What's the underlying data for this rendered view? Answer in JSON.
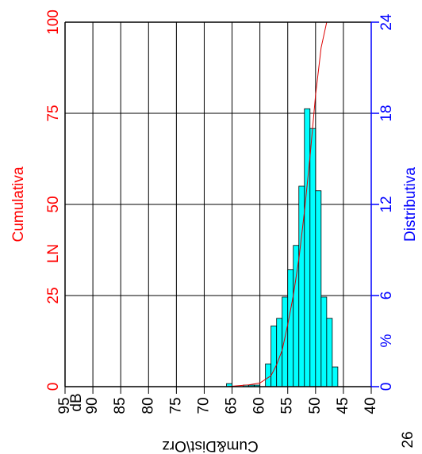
{
  "chart_data": {
    "type": "histogram",
    "xlim": [
      95,
      40
    ],
    "xticks": [
      95,
      90,
      85,
      80,
      75,
      70,
      65,
      60,
      55,
      50,
      45,
      40
    ],
    "x_unit_label": "dB",
    "ylim": [
      0,
      100
    ],
    "yticks": [
      0,
      25,
      50,
      75,
      100
    ],
    "ylabel": "Cumulativa",
    "ylabel_prefix": "LN",
    "y2lim": [
      0,
      24
    ],
    "y2ticks": [
      0,
      6,
      12,
      18,
      24
    ],
    "y2label": "Distributiva",
    "y2_unit_label": "%",
    "grid": true,
    "left_color": "#ff0000",
    "right_color": "#0000ff",
    "histogram": {
      "axis": "y2",
      "color": "#00ffff",
      "bins": [
        66,
        65,
        64,
        63,
        62,
        61,
        60,
        59,
        58,
        57,
        56,
        55,
        54,
        53,
        52,
        51,
        50,
        49,
        48,
        47,
        46
      ],
      "counts": [
        0.2,
        0,
        0,
        0.1,
        0.1,
        0.1,
        0,
        1.5,
        4.0,
        4.5,
        5.9,
        7.7,
        9.3,
        13.2,
        18.3,
        17.0,
        12.9,
        5.9,
        4.5,
        1.3
      ]
    },
    "cumulative": {
      "color": "#dd0000",
      "x": [
        66,
        62,
        60,
        58,
        57,
        56,
        55,
        54,
        53,
        52,
        51,
        50,
        49,
        48
      ],
      "values": [
        0,
        0.5,
        1,
        3,
        6,
        10,
        17,
        25,
        35,
        48,
        63,
        80,
        93,
        100
      ]
    },
    "footer": "Cum&Dist\\Orz",
    "page_number": "26"
  }
}
